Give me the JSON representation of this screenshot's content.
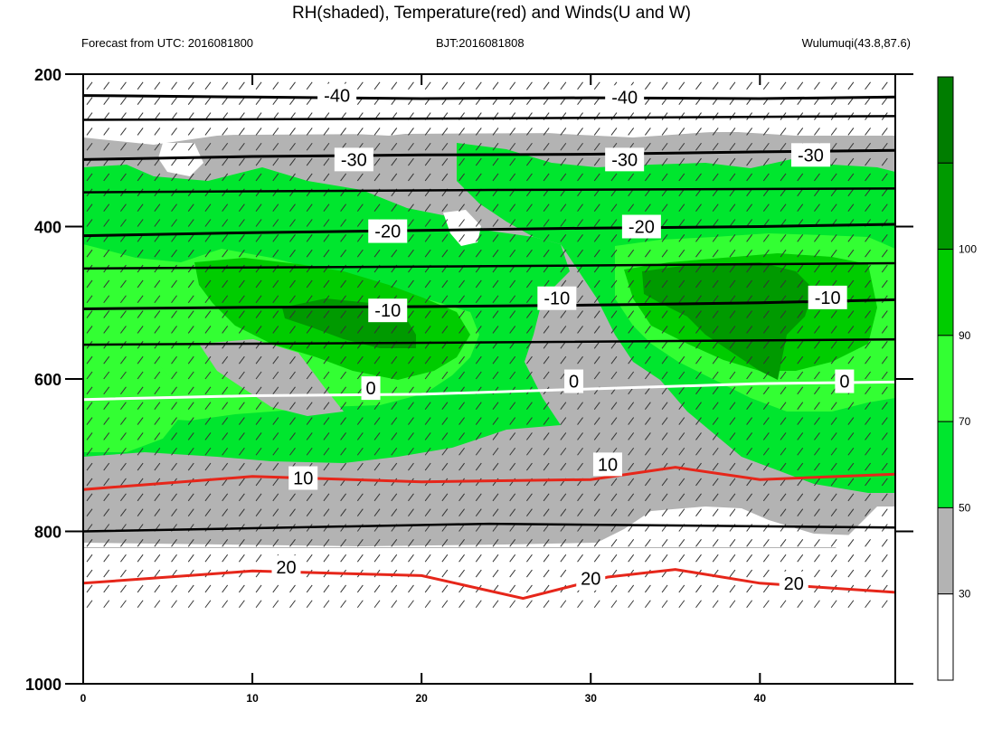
{
  "chart_data": {
    "type": "contour",
    "title": "RH(shaded), Temperature(red) and Winds(U and W)",
    "subtitle_left": "Forecast from UTC: 2016081800",
    "subtitle_center": "BJT:2016081808",
    "subtitle_right": "Wulumuqi(43.8,87.6)",
    "x_range": [
      0,
      48
    ],
    "x_ticks": [
      0,
      10,
      20,
      30,
      40
    ],
    "y_range": [
      200,
      1000
    ],
    "y_ticks": [
      200,
      400,
      600,
      800,
      1000
    ],
    "y_reversed": true,
    "colorbar": {
      "levels": [
        "30",
        "50",
        "70",
        "90",
        "100"
      ],
      "colors": [
        "#ffffff",
        "#b3b3b3",
        "#00e62e",
        "#33ff33",
        "#00cc00",
        "#009a00",
        "#007d00"
      ]
    },
    "temperature_contours": [
      {
        "label": "-40",
        "color": "#000000",
        "points": [
          [
            0,
            228
          ],
          [
            10,
            230
          ],
          [
            20,
            232
          ],
          [
            30,
            231
          ],
          [
            40,
            232
          ],
          [
            48,
            230
          ]
        ]
      },
      {
        "label": "-30",
        "color": "#000000",
        "points": [
          [
            0,
            312
          ],
          [
            10,
            308
          ],
          [
            20,
            306
          ],
          [
            30,
            305
          ],
          [
            40,
            302
          ],
          [
            48,
            300
          ]
        ]
      },
      {
        "label": "-20",
        "color": "#000000",
        "points": [
          [
            0,
            412
          ],
          [
            10,
            408
          ],
          [
            20,
            405
          ],
          [
            30,
            402
          ],
          [
            40,
            400
          ],
          [
            48,
            397
          ]
        ]
      },
      {
        "label": "-10",
        "color": "#000000",
        "points": [
          [
            0,
            508
          ],
          [
            10,
            506
          ],
          [
            20,
            505
          ],
          [
            30,
            503
          ],
          [
            40,
            500
          ],
          [
            48,
            496
          ]
        ]
      },
      {
        "label": "0",
        "color": "#ffffff",
        "points": [
          [
            0,
            627
          ],
          [
            10,
            622
          ],
          [
            20,
            620
          ],
          [
            30,
            613
          ],
          [
            40,
            606
          ],
          [
            48,
            604
          ]
        ]
      },
      {
        "label": "10",
        "color": "#e6261a",
        "points": [
          [
            0,
            745
          ],
          [
            10,
            728
          ],
          [
            20,
            735
          ],
          [
            30,
            732
          ],
          [
            35,
            716
          ],
          [
            40,
            732
          ],
          [
            48,
            725
          ]
        ]
      },
      {
        "label": "20",
        "color": "#e6261a",
        "points": [
          [
            0,
            868
          ],
          [
            10,
            852
          ],
          [
            20,
            858
          ],
          [
            26,
            888
          ],
          [
            31,
            860
          ],
          [
            35,
            850
          ],
          [
            40,
            868
          ],
          [
            48,
            880
          ]
        ]
      }
    ],
    "contour_labels": [
      {
        "text": "-40",
        "x": 15,
        "y": 228
      },
      {
        "text": "-40",
        "x": 32,
        "y": 230
      },
      {
        "text": "-30",
        "x": 16,
        "y": 312
      },
      {
        "text": "-30",
        "x": 32,
        "y": 312
      },
      {
        "text": "-30",
        "x": 43,
        "y": 306
      },
      {
        "text": "-20",
        "x": 18,
        "y": 406
      },
      {
        "text": "-20",
        "x": 33,
        "y": 400
      },
      {
        "text": "-10",
        "x": 18,
        "y": 510
      },
      {
        "text": "-10",
        "x": 28,
        "y": 494
      },
      {
        "text": "-10",
        "x": 44,
        "y": 493
      },
      {
        "text": "0",
        "x": 17,
        "y": 612
      },
      {
        "text": "0",
        "x": 29,
        "y": 603
      },
      {
        "text": "0",
        "x": 45,
        "y": 603
      },
      {
        "text": "10",
        "x": 13,
        "y": 730
      },
      {
        "text": "10",
        "x": 31,
        "y": 712
      },
      {
        "text": "20",
        "x": 12,
        "y": 847
      },
      {
        "text": "20",
        "x": 30,
        "y": 862
      },
      {
        "text": "20",
        "x": 42,
        "y": 868
      }
    ]
  }
}
